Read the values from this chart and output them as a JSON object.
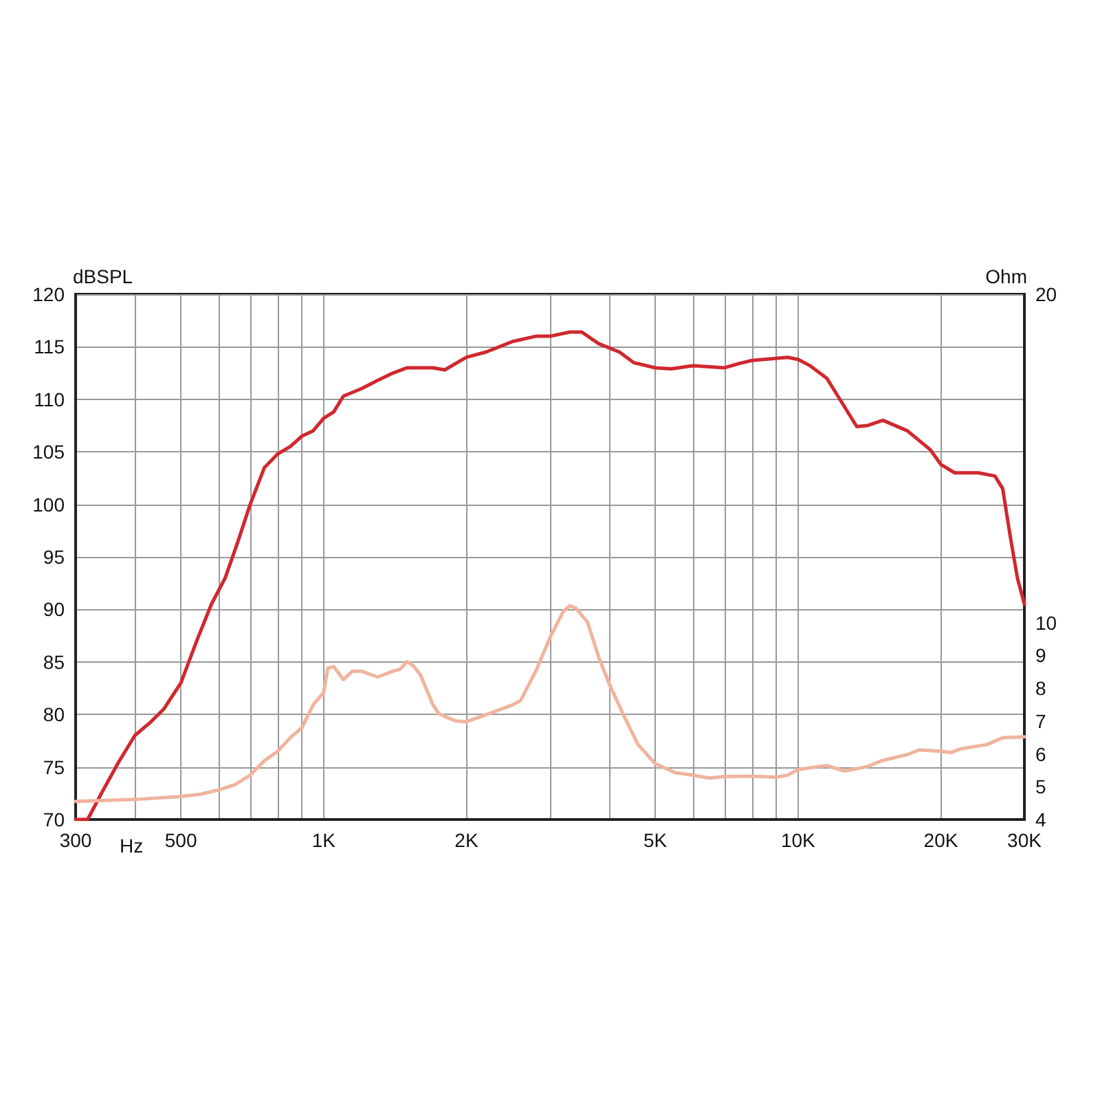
{
  "chart_data": {
    "type": "line",
    "xlabel": "Hz",
    "ylabel": "dBSPL",
    "y2label": "Ohm",
    "log": "x",
    "grid": true,
    "marker": "none",
    "line_style": "solid",
    "xlim": [
      300,
      30000
    ],
    "xticks": [
      300,
      {
        "value": 400,
        "label": null
      },
      500,
      {
        "value": 600,
        "label": null
      },
      {
        "value": 700,
        "label": null
      },
      {
        "value": 800,
        "label": null
      },
      {
        "value": 900,
        "label": null
      },
      {
        "value": 1000,
        "label": "1K"
      },
      {
        "value": 2000,
        "label": "2K"
      },
      {
        "value": 3000,
        "label": null
      },
      {
        "value": 4000,
        "label": null
      },
      {
        "value": 5000,
        "label": "5K"
      },
      {
        "value": 6000,
        "label": null
      },
      {
        "value": 7000,
        "label": null
      },
      {
        "value": 8000,
        "label": null
      },
      {
        "value": 9000,
        "label": null
      },
      {
        "value": 10000,
        "label": "10K"
      },
      {
        "value": 20000,
        "label": "20K"
      },
      {
        "value": 30000,
        "label": "30K"
      }
    ],
    "ylim": [
      70,
      120
    ],
    "yticks": [
      70,
      75,
      80,
      85,
      90,
      95,
      100,
      105,
      110,
      115,
      120
    ],
    "y2lim": [
      4,
      20
    ],
    "y2ticks": [
      4,
      5,
      6,
      7,
      8,
      9,
      10,
      20
    ],
    "series": [
      {
        "color": "#d0282e",
        "x": [
          300,
          318,
          340,
          370,
          400,
          430,
          460,
          500,
          540,
          580,
          620,
          660,
          700,
          750,
          800,
          850,
          900,
          950,
          1000,
          1050,
          1100,
          1200,
          1300,
          1400,
          1500,
          1700,
          1800,
          2000,
          2200,
          2500,
          2800,
          3000,
          3300,
          3500,
          3800,
          4200,
          4500,
          5000,
          5400,
          6000,
          6500,
          7000,
          7500,
          8000,
          9000,
          9500,
          10000,
          10600,
          11500,
          13300,
          14000,
          15100,
          17000,
          19000,
          20000,
          21400,
          24000,
          26000,
          27000,
          28000,
          29000,
          30000
        ],
        "values": [
          70,
          70,
          72.5,
          75.5,
          78,
          79.2,
          80.5,
          83,
          87,
          90.5,
          93,
          96.5,
          100,
          103.5,
          104.8,
          105.5,
          106.5,
          107,
          108.2,
          108.8,
          110.3,
          111,
          111.8,
          112.5,
          113,
          113,
          112.8,
          114,
          114.5,
          115.5,
          116,
          116,
          116.4,
          116.4,
          115.3,
          114.5,
          113.5,
          113,
          112.9,
          113.2,
          113.1,
          113,
          113.4,
          113.7,
          113.9,
          114,
          113.8,
          113.2,
          112,
          107.4,
          107.5,
          108,
          107,
          105.2,
          103.8,
          103,
          103,
          102.7,
          101.5,
          97,
          93,
          90.5
        ]
      },
      {
        "color": "#f0b49e",
        "axis": "y2",
        "x": [
          300,
          400,
          500,
          550,
          600,
          650,
          700,
          750,
          800,
          850,
          900,
          950,
          1000,
          1020,
          1050,
          1100,
          1150,
          1200,
          1300,
          1400,
          1450,
          1500,
          1550,
          1600,
          1700,
          1750,
          1800,
          1900,
          2000,
          2200,
          2500,
          2600,
          2800,
          3000,
          3200,
          3300,
          3400,
          3600,
          3800,
          4000,
          4300,
          4600,
          5000,
          5500,
          6000,
          6500,
          7000,
          8000,
          9000,
          9500,
          10000,
          11000,
          11500,
          12000,
          12500,
          13000,
          14000,
          15000,
          17000,
          18000,
          20000,
          21000,
          22000,
          25000,
          27000,
          30000
        ],
        "values": [
          4.55,
          4.61,
          4.7,
          4.77,
          4.9,
          5.06,
          5.35,
          5.79,
          6.08,
          6.49,
          6.8,
          7.49,
          7.87,
          8.61,
          8.66,
          8.26,
          8.52,
          8.52,
          8.34,
          8.52,
          8.58,
          8.81,
          8.66,
          8.4,
          7.49,
          7.22,
          7.14,
          7.0,
          6.98,
          7.19,
          7.49,
          7.62,
          8.52,
          9.54,
          10.34,
          10.51,
          10.44,
          10.01,
          8.94,
          8.13,
          7.14,
          6.28,
          5.7,
          5.43,
          5.35,
          5.26,
          5.31,
          5.32,
          5.29,
          5.35,
          5.52,
          5.61,
          5.64,
          5.56,
          5.48,
          5.52,
          5.61,
          5.79,
          5.98,
          6.12,
          6.08,
          6.04,
          6.15,
          6.28,
          6.49,
          6.52
        ]
      }
    ]
  }
}
